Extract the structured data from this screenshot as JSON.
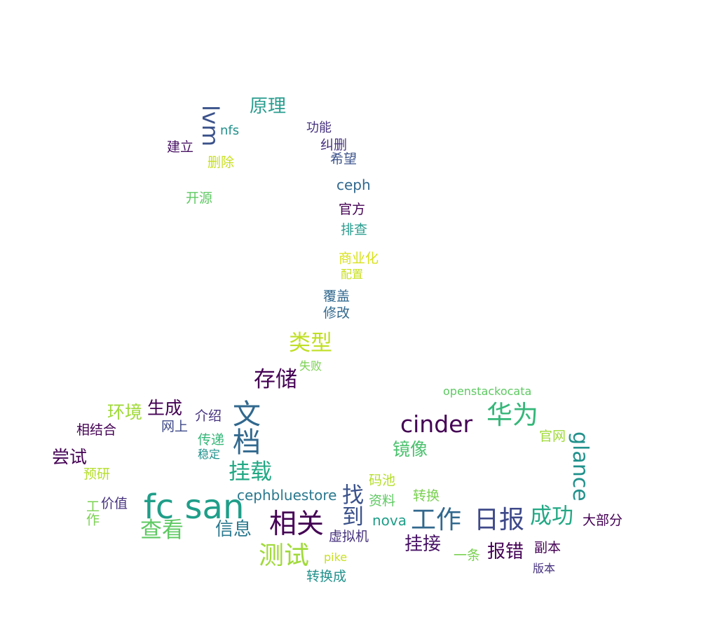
{
  "words": [
    {
      "text": "原理",
      "color": "#2a9d8f"
    },
    {
      "text": "lvm",
      "color": "#3b528b"
    },
    {
      "text": "nfs",
      "color": "#21918c"
    },
    {
      "text": "功能",
      "color": "#46327e"
    },
    {
      "text": "建立",
      "color": "#471164"
    },
    {
      "text": "纠删",
      "color": "#46327e"
    },
    {
      "text": "删除",
      "color": "#c8e020"
    },
    {
      "text": "希望",
      "color": "#3b528b"
    },
    {
      "text": "ceph",
      "color": "#31688e"
    },
    {
      "text": "开源",
      "color": "#5ec962"
    },
    {
      "text": "官方",
      "color": "#440154"
    },
    {
      "text": "排查",
      "color": "#2a9d8f"
    },
    {
      "text": "商业化",
      "color": "#d8e219"
    },
    {
      "text": "配置",
      "color": "#c8e020"
    },
    {
      "text": "覆盖",
      "color": "#31688e"
    },
    {
      "text": "修改",
      "color": "#31688e"
    },
    {
      "text": "类型",
      "color": "#c0df25"
    },
    {
      "text": "失败",
      "color": "#7ad151"
    },
    {
      "text": "存储",
      "color": "#440154"
    },
    {
      "text": "openstackocata",
      "color": "#5ec962"
    },
    {
      "text": "环境",
      "color": "#a0da39"
    },
    {
      "text": "生成",
      "color": "#440154"
    },
    {
      "text": "介绍",
      "color": "#46327e"
    },
    {
      "text": "文档",
      "color": "#31688e"
    },
    {
      "text": "cinder",
      "color": "#440154"
    },
    {
      "text": "华为",
      "color": "#35b779"
    },
    {
      "text": "相结合",
      "color": "#440154"
    },
    {
      "text": "网上",
      "color": "#3e4989"
    },
    {
      "text": "传递",
      "color": "#35b779"
    },
    {
      "text": "官网",
      "color": "#a0da39"
    },
    {
      "text": "glance",
      "color": "#21918c"
    },
    {
      "text": "稳定",
      "color": "#21918c"
    },
    {
      "text": "镜像",
      "color": "#4ac16d"
    },
    {
      "text": "尝试",
      "color": "#440154"
    },
    {
      "text": "挂载",
      "color": "#22a884"
    },
    {
      "text": "预研",
      "color": "#b5de2b"
    },
    {
      "text": "码池",
      "color": "#b5de2b"
    },
    {
      "text": "找到",
      "color": "#3b528b"
    },
    {
      "text": "cephbluestore",
      "color": "#2a788e"
    },
    {
      "text": "转换",
      "color": "#7ad151"
    },
    {
      "text": "工作",
      "color": "#7ad151"
    },
    {
      "text": "价值",
      "color": "#46327e"
    },
    {
      "text": "fc san",
      "color": "#1f9e89"
    },
    {
      "text": "资料",
      "color": "#5ec962"
    },
    {
      "text": "nova",
      "color": "#1f9e89"
    },
    {
      "text": "工作",
      "color": "#31688e"
    },
    {
      "text": "日报",
      "color": "#3e4989"
    },
    {
      "text": "成功",
      "color": "#22a884"
    },
    {
      "text": "大部分",
      "color": "#440154"
    },
    {
      "text": "相关",
      "color": "#440154"
    },
    {
      "text": "查看",
      "color": "#5ec962"
    },
    {
      "text": "信息",
      "color": "#2a788e"
    },
    {
      "text": "虚拟机",
      "color": "#46327e"
    },
    {
      "text": "挂接",
      "color": "#471164"
    },
    {
      "text": "测试",
      "color": "#a0da39"
    },
    {
      "text": "pike",
      "color": "#c8e020"
    },
    {
      "text": "一条",
      "color": "#7ad151"
    },
    {
      "text": "报错",
      "color": "#440154"
    },
    {
      "text": "副本",
      "color": "#440154"
    },
    {
      "text": "转换成",
      "color": "#21918c"
    },
    {
      "text": "版本",
      "color": "#46327e"
    }
  ]
}
